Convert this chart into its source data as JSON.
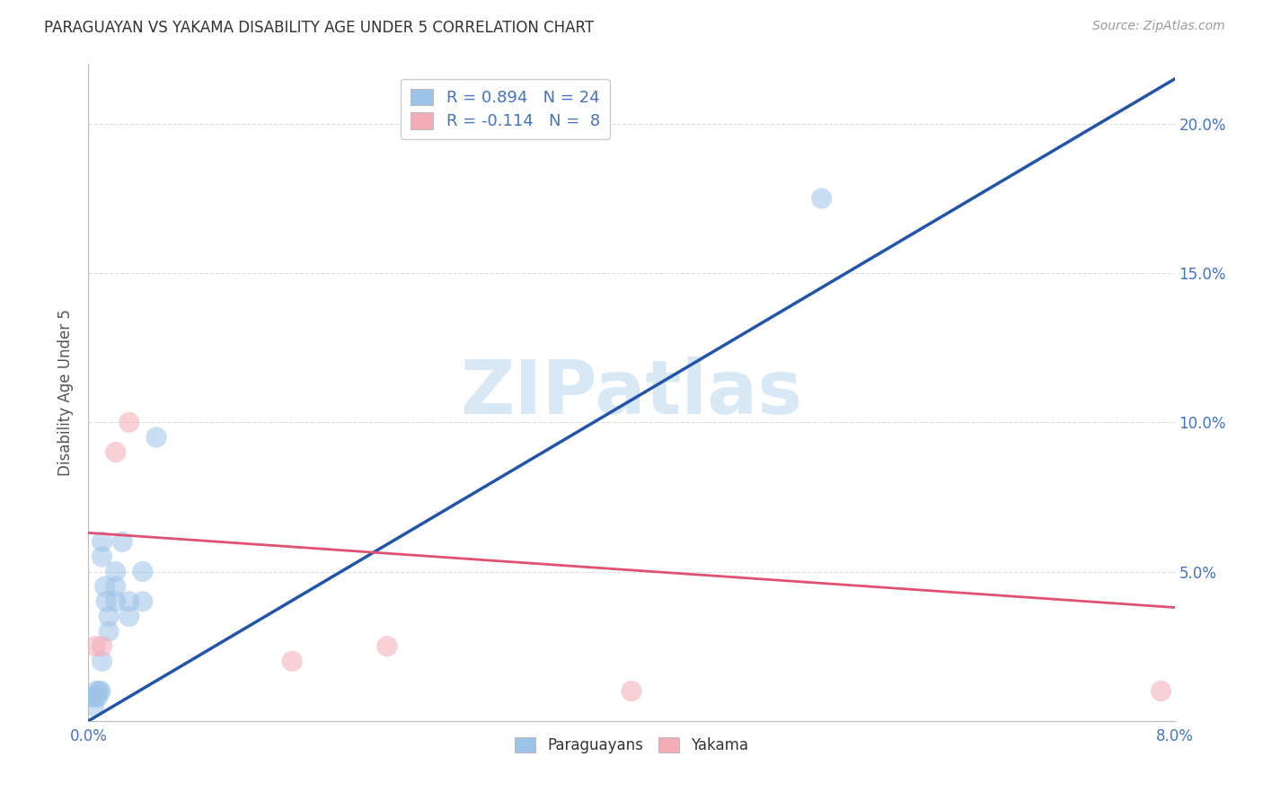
{
  "title": "PARAGUAYAN VS YAKAMA DISABILITY AGE UNDER 5 CORRELATION CHART",
  "source": "Source: ZipAtlas.com",
  "ylabel": "Disability Age Under 5",
  "xlim": [
    0.0,
    0.08
  ],
  "ylim": [
    0.0,
    0.22
  ],
  "legend_label1": "R = 0.894   N = 24",
  "legend_label2": "R = -0.114   N =  8",
  "legend_color1": "#9DC3E8",
  "legend_color2": "#F4ACB7",
  "watermark": "ZIPatlas",
  "watermark_color": "#d8e8f5",
  "paraguayan_color": "#9DC3E8",
  "yakama_color": "#F4ACB7",
  "trend_blue": "#2255AA",
  "trend_pink": "#E05070",
  "blue_line_x": [
    0.0,
    0.08
  ],
  "blue_line_y": [
    0.0,
    0.215
  ],
  "pink_line_x": [
    0.0,
    0.08
  ],
  "pink_line_y": [
    0.063,
    0.038
  ],
  "paraguayan_x": [
    0.0003,
    0.0004,
    0.0005,
    0.0006,
    0.0007,
    0.0008,
    0.0009,
    0.001,
    0.001,
    0.001,
    0.0012,
    0.0013,
    0.0015,
    0.0015,
    0.002,
    0.002,
    0.002,
    0.0025,
    0.003,
    0.003,
    0.004,
    0.004,
    0.005,
    0.054
  ],
  "paraguayan_y": [
    0.008,
    0.005,
    0.008,
    0.01,
    0.008,
    0.01,
    0.01,
    0.02,
    0.055,
    0.06,
    0.045,
    0.04,
    0.035,
    0.03,
    0.04,
    0.045,
    0.05,
    0.06,
    0.035,
    0.04,
    0.04,
    0.05,
    0.095,
    0.175
  ],
  "yakama_x": [
    0.0005,
    0.001,
    0.002,
    0.003,
    0.015,
    0.022,
    0.04,
    0.079
  ],
  "yakama_y": [
    0.025,
    0.025,
    0.09,
    0.1,
    0.02,
    0.025,
    0.01,
    0.01
  ],
  "x_tick_positions": [
    0.0,
    0.01,
    0.02,
    0.03,
    0.04,
    0.05,
    0.06,
    0.07,
    0.08
  ],
  "x_tick_labels": [
    "0.0%",
    "",
    "",
    "",
    "",
    "",
    "",
    "",
    "8.0%"
  ],
  "y_tick_positions": [
    0.0,
    0.05,
    0.1,
    0.15,
    0.2
  ],
  "y_tick_labels_left": [
    "",
    "",
    "",
    "",
    ""
  ],
  "y_tick_labels_right": [
    "",
    "5.0%",
    "10.0%",
    "15.0%",
    "20.0%"
  ],
  "grid_color": "#dddddd",
  "title_fontsize": 12,
  "source_fontsize": 10,
  "tick_label_color": "#4472C4",
  "axis_label_color": "#555555"
}
